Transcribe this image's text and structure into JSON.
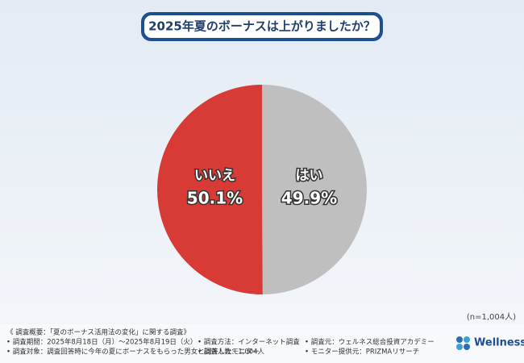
{
  "chart_data": {
    "type": "pie",
    "title": "2025年夏のボーナスは上がりましたか？",
    "categories": [
      "はい",
      "いいえ"
    ],
    "values": [
      49.9,
      50.1
    ],
    "value_labels": [
      "49.9%",
      "50.1%"
    ],
    "colors": [
      "#bfbfbf",
      "#d83a35"
    ],
    "note": "(n=1,004人)"
  },
  "footer": {
    "rows": [
      [
        "《 調査概要：「夏のボーナス活用法の変化」に関する調査》"
      ],
      [
        "• 調査期間：2025年8月18日（月）～2025年8月19日（火）",
        "• 調査方法：インターネット調査",
        "• 調査元：ウェルネス総合投資アカデミー"
      ],
      [
        "• 調査対象：調査回答時に今年の夏にボーナスをもらった男女と回答したモニター",
        "• 調査人数：1,004人",
        "• モニター提供元：PRIZMAリサーチ"
      ]
    ],
    "logo": "Wellness"
  }
}
